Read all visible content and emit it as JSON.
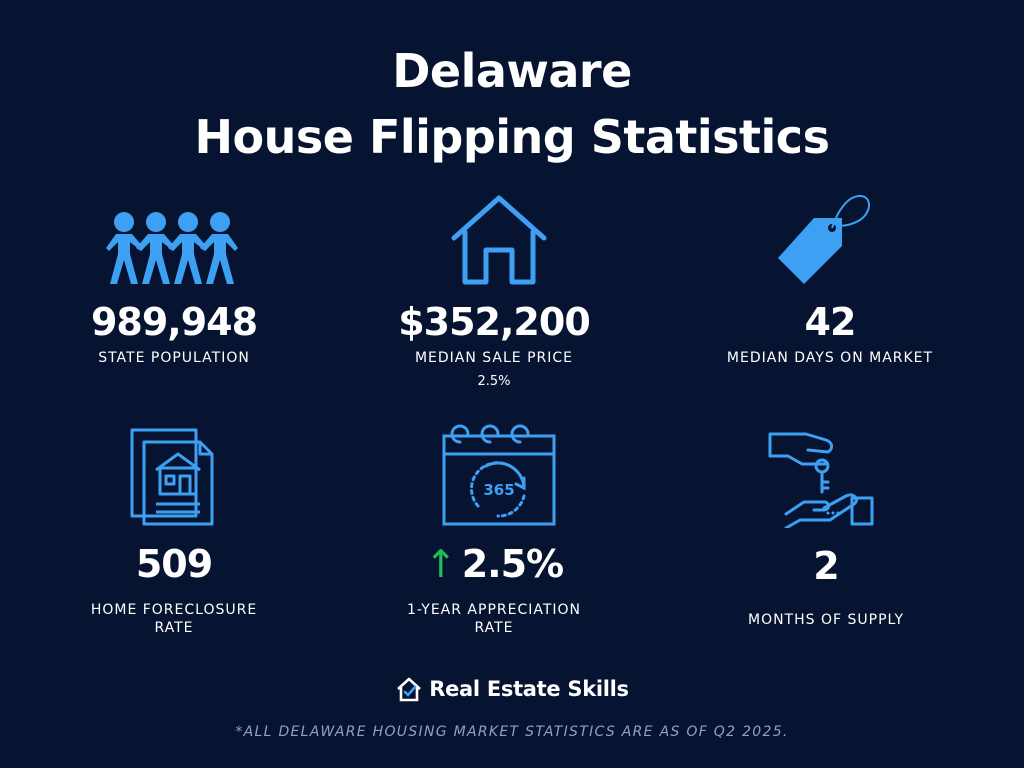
{
  "title": {
    "line1": "Delaware",
    "line2": "House Flipping Statistics"
  },
  "colors": {
    "background": "#061431",
    "icon_blue": "#3ea0f2",
    "arrow_green": "#1fbf5a",
    "footnote": "#8fa0c2"
  },
  "stats": {
    "population": {
      "icon": "people-chain-icon",
      "value": "989,948",
      "label": "STATE POPULATION"
    },
    "median_sale_price": {
      "icon": "house-icon",
      "value": "$352,200",
      "label": "MEDIAN SALE PRICE",
      "sub": "2.5%"
    },
    "days_on_market": {
      "icon": "price-tag-icon",
      "value": "42",
      "label": "MEDIAN DAYS ON MARKET"
    },
    "foreclosure": {
      "icon": "house-documents-icon",
      "value": "509",
      "label_line1": "HOME FORECLOSURE",
      "label_line2": "RATE"
    },
    "appreciation": {
      "icon": "calendar-365-icon",
      "arrow": "↑",
      "value": "2.5%",
      "label_line1": "1-YEAR APPRECIATION",
      "label_line2": "RATE"
    },
    "supply": {
      "icon": "hand-keys-icon",
      "value": "2",
      "label": "MONTHS OF SUPPLY"
    }
  },
  "brand": {
    "icon": "house-check-icon",
    "name": "Real Estate Skills"
  },
  "footnote": "*ALL DELAWARE HOUSING MARKET STATISTICS ARE AS OF Q2 2025."
}
